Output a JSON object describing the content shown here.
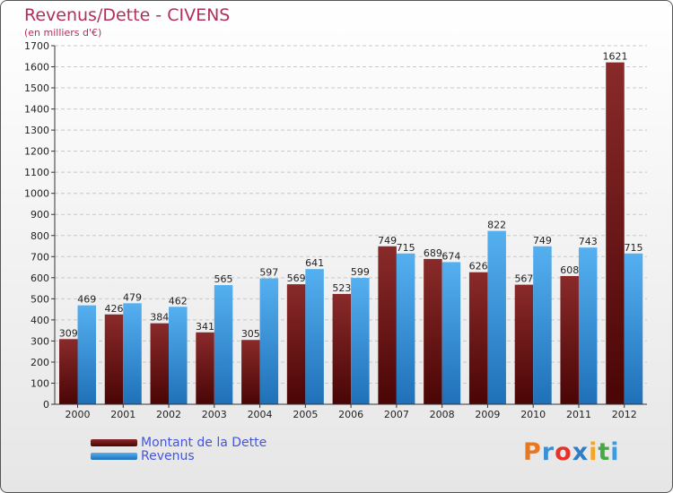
{
  "chart_data": {
    "type": "bar",
    "title": "Revenus/Dette - CIVENS",
    "subtitle": "(en milliers d'€)",
    "categories": [
      "2000",
      "2001",
      "2002",
      "2003",
      "2004",
      "2005",
      "2006",
      "2007",
      "2008",
      "2009",
      "2010",
      "2011",
      "2012"
    ],
    "series": [
      {
        "name": "Montant de la Dette",
        "color": "#7a1515",
        "values": [
          309,
          426,
          384,
          341,
          305,
          569,
          523,
          749,
          689,
          626,
          567,
          608,
          1621
        ]
      },
      {
        "name": "Revenus",
        "color": "#3d9be0",
        "values": [
          469,
          479,
          462,
          565,
          597,
          641,
          599,
          715,
          674,
          822,
          749,
          743,
          715
        ]
      }
    ],
    "ylim": [
      0,
      1700
    ],
    "ytick_step": 100,
    "grid": true,
    "legend": "bottom-left"
  },
  "legend": {
    "debt_label": "Montant de la Dette",
    "revenue_label": "Revenus"
  },
  "logo": {
    "text": "Proxiti",
    "colors": [
      "#e87722",
      "#3a8fd6",
      "#e5322d",
      "#2f7ec4",
      "#f5a623",
      "#44aa44",
      "#3d9be0"
    ]
  }
}
